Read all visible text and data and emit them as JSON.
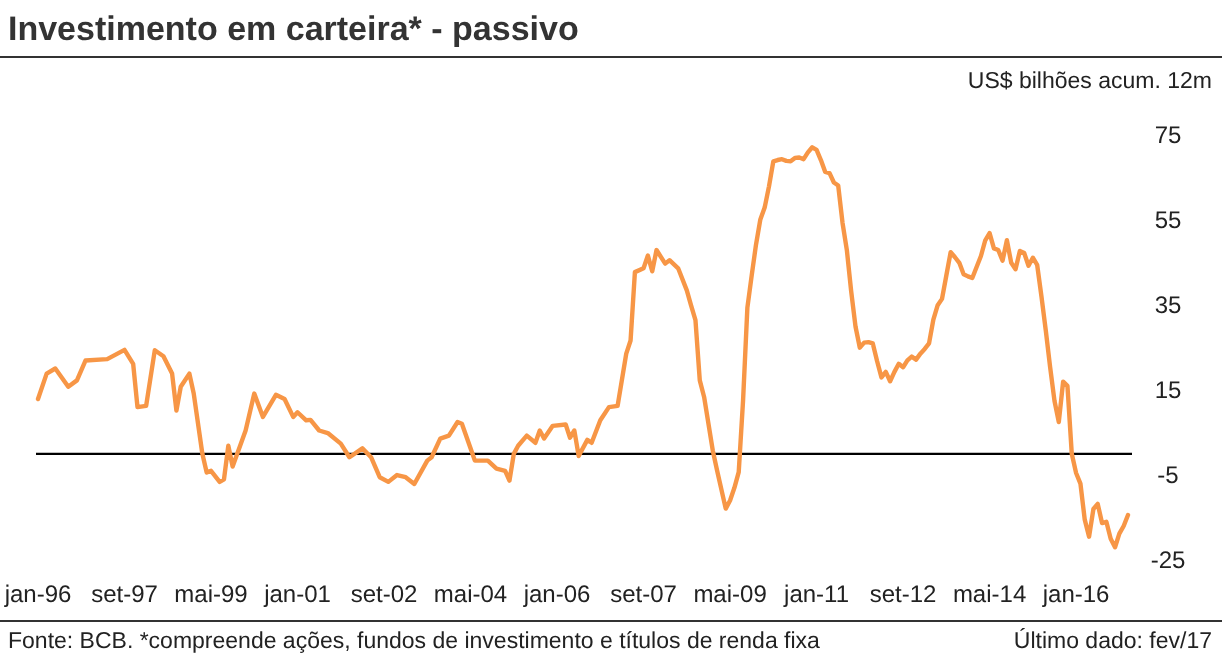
{
  "chart_data": {
    "type": "line",
    "title": "Investimento em carteira* - passivo",
    "ylabel": "US$ bilhões acum. 12m",
    "annotations": [
      "Fonte: BCB. *compreende ações, fundos de investimento e títulos de renda fixa",
      "Último dado: fev/17"
    ],
    "x": [
      "1996-01",
      "1996-03",
      "1996-05",
      "1996-08",
      "1996-10",
      "1996-12",
      "1997-05",
      "1997-09",
      "1997-11",
      "1997-12",
      "1998-02",
      "1998-04",
      "1998-06",
      "1998-08",
      "1998-09",
      "1998-10",
      "1998-12",
      "1999-01",
      "1999-03",
      "1999-04",
      "1999-05",
      "1999-07",
      "1999-08",
      "1999-09",
      "1999-10",
      "2000-01",
      "2000-03",
      "2000-05",
      "2000-08",
      "2000-10",
      "2000-12",
      "2001-01",
      "2001-03",
      "2001-04",
      "2001-06",
      "2001-08",
      "2001-11",
      "2002-01",
      "2002-04",
      "2002-06",
      "2002-08",
      "2002-10",
      "2002-12",
      "2003-02",
      "2003-04",
      "2003-07",
      "2003-08",
      "2003-10",
      "2003-12",
      "2004-02",
      "2004-03",
      "2004-05",
      "2004-06",
      "2004-09",
      "2004-11",
      "2005-01",
      "2005-02",
      "2005-03",
      "2005-04",
      "2005-06",
      "2005-08",
      "2005-09",
      "2005-10",
      "2005-12",
      "2006-03",
      "2006-04",
      "2006-05",
      "2006-06",
      "2006-08",
      "2006-09",
      "2006-11",
      "2007-01",
      "2007-03",
      "2007-05",
      "2007-06",
      "2007-07",
      "2007-09",
      "2007-10",
      "2007-11",
      "2007-12",
      "2008-02",
      "2008-03",
      "2008-05",
      "2008-07",
      "2008-08",
      "2008-09",
      "2008-10",
      "2008-11",
      "2009-01",
      "2009-02",
      "2009-04",
      "2009-05",
      "2009-06",
      "2009-07",
      "2009-08",
      "2009-09",
      "2009-10",
      "2009-11",
      "2009-12",
      "2010-01",
      "2010-02",
      "2010-03",
      "2010-04",
      "2010-05",
      "2010-06",
      "2010-07",
      "2010-08",
      "2010-09",
      "2010-10",
      "2010-11",
      "2010-12",
      "2011-01",
      "2011-02",
      "2011-03",
      "2011-04",
      "2011-05",
      "2011-06",
      "2011-07",
      "2011-08",
      "2011-09",
      "2011-10",
      "2011-11",
      "2011-12",
      "2012-01",
      "2012-02",
      "2012-03",
      "2012-04",
      "2012-05",
      "2012-06",
      "2012-07",
      "2012-08",
      "2012-09",
      "2012-10",
      "2012-11",
      "2012-12",
      "2013-01",
      "2013-02",
      "2013-03",
      "2013-04",
      "2013-05",
      "2013-06",
      "2013-07",
      "2013-08",
      "2013-09",
      "2013-10",
      "2013-11",
      "2013-12",
      "2014-01",
      "2014-02",
      "2014-03",
      "2014-04",
      "2014-05",
      "2014-06",
      "2014-07",
      "2014-08",
      "2014-09",
      "2014-10",
      "2014-11",
      "2014-12",
      "2015-01",
      "2015-02",
      "2015-03",
      "2015-04",
      "2015-05",
      "2015-06",
      "2015-07",
      "2015-08",
      "2015-09",
      "2015-10",
      "2015-11",
      "2015-12",
      "2016-01",
      "2016-02",
      "2016-03",
      "2016-04",
      "2016-05",
      "2016-06",
      "2016-07",
      "2016-08",
      "2016-09",
      "2016-10",
      "2016-11",
      "2016-12",
      "2017-01"
    ],
    "series": [
      {
        "color": "#f79646",
        "values": [
          12.9,
          18.9,
          20.1,
          15.8,
          17.3,
          22,
          22.3,
          24.5,
          21.2,
          11,
          11.3,
          24.4,
          23,
          18.9,
          10.2,
          15.8,
          18.9,
          14.2,
          0,
          -4.4,
          -4,
          -6.6,
          -6,
          1.9,
          -3,
          5.5,
          14.2,
          8.7,
          13.9,
          12.9,
          8.7,
          9.8,
          7.9,
          8,
          5.5,
          4.9,
          2.4,
          -0.8,
          1.3,
          -0.8,
          -5.5,
          -6.6,
          -5,
          -5.5,
          -7.1,
          -1.6,
          -0.8,
          3.6,
          4.3,
          7.5,
          7.1,
          1.3,
          -1.6,
          -1.6,
          -3.5,
          -4,
          -6.3,
          0,
          1.9,
          4.3,
          2.6,
          5.5,
          3.6,
          6.6,
          6.9,
          3.8,
          5.5,
          -0.5,
          3.3,
          2.6,
          7.9,
          11,
          11.3,
          23.6,
          26.7,
          42.8,
          43.7,
          46.7,
          43,
          48,
          44.8,
          45.6,
          43.7,
          38.5,
          34.9,
          31.5,
          17.3,
          13.4,
          0.8,
          -3.9,
          -12.9,
          -11,
          -8,
          -4.3,
          12.5,
          34.4,
          42,
          49.3,
          55.2,
          58,
          63,
          68.9,
          69.2,
          69.4,
          69,
          68.9,
          69.7,
          69.8,
          69.4,
          71,
          72.2,
          71.6,
          69.2,
          66.4,
          66.1,
          63.9,
          63.2,
          54.4,
          48,
          38.3,
          30,
          25,
          26.2,
          26.3,
          26,
          21.8,
          18,
          19.3,
          17.1,
          19.3,
          21.2,
          20.4,
          22,
          22.9,
          22.2,
          23.6,
          24.7,
          26,
          31.6,
          35,
          36.5,
          42,
          47.5,
          46.3,
          45,
          42.3,
          41.8,
          41.4,
          44,
          46.6,
          50.3,
          52,
          48.4,
          48,
          45.5,
          50.3,
          45,
          43.5,
          47.8,
          47.3,
          44.3,
          46.2,
          44.5,
          37,
          29,
          20.4,
          12.5,
          7.5,
          17,
          16,
          0,
          -4.5,
          -7,
          -15.5,
          -19.5,
          -13,
          -11.8,
          -16.3,
          -16,
          -20,
          -22,
          -18.8,
          -17,
          -14.4
        ]
      }
    ],
    "xlim": [
      "1996-01",
      "2017-01"
    ],
    "xticks": [
      {
        "value": "1996-01",
        "label": "jan-96"
      },
      {
        "value": "1997-09",
        "label": "set-97"
      },
      {
        "value": "1999-05",
        "label": "mai-99"
      },
      {
        "value": "2001-01",
        "label": "jan-01"
      },
      {
        "value": "2002-09",
        "label": "set-02"
      },
      {
        "value": "2004-05",
        "label": "mai-04"
      },
      {
        "value": "2006-01",
        "label": "jan-06"
      },
      {
        "value": "2007-09",
        "label": "set-07"
      },
      {
        "value": "2009-05",
        "label": "mai-09"
      },
      {
        "value": "2011-01",
        "label": "jan-11"
      },
      {
        "value": "2012-09",
        "label": "set-12"
      },
      {
        "value": "2014-05",
        "label": "mai-14"
      },
      {
        "value": "2016-01",
        "label": "jan-16"
      }
    ],
    "ylim": [
      -25,
      75
    ],
    "yticks": [
      -25,
      -5,
      15,
      35,
      55,
      75
    ],
    "ref_lines": [
      {
        "axis": "y",
        "value": 0,
        "color": "#000000"
      }
    ],
    "grid": false,
    "marker": "none",
    "line_style": "solid"
  }
}
